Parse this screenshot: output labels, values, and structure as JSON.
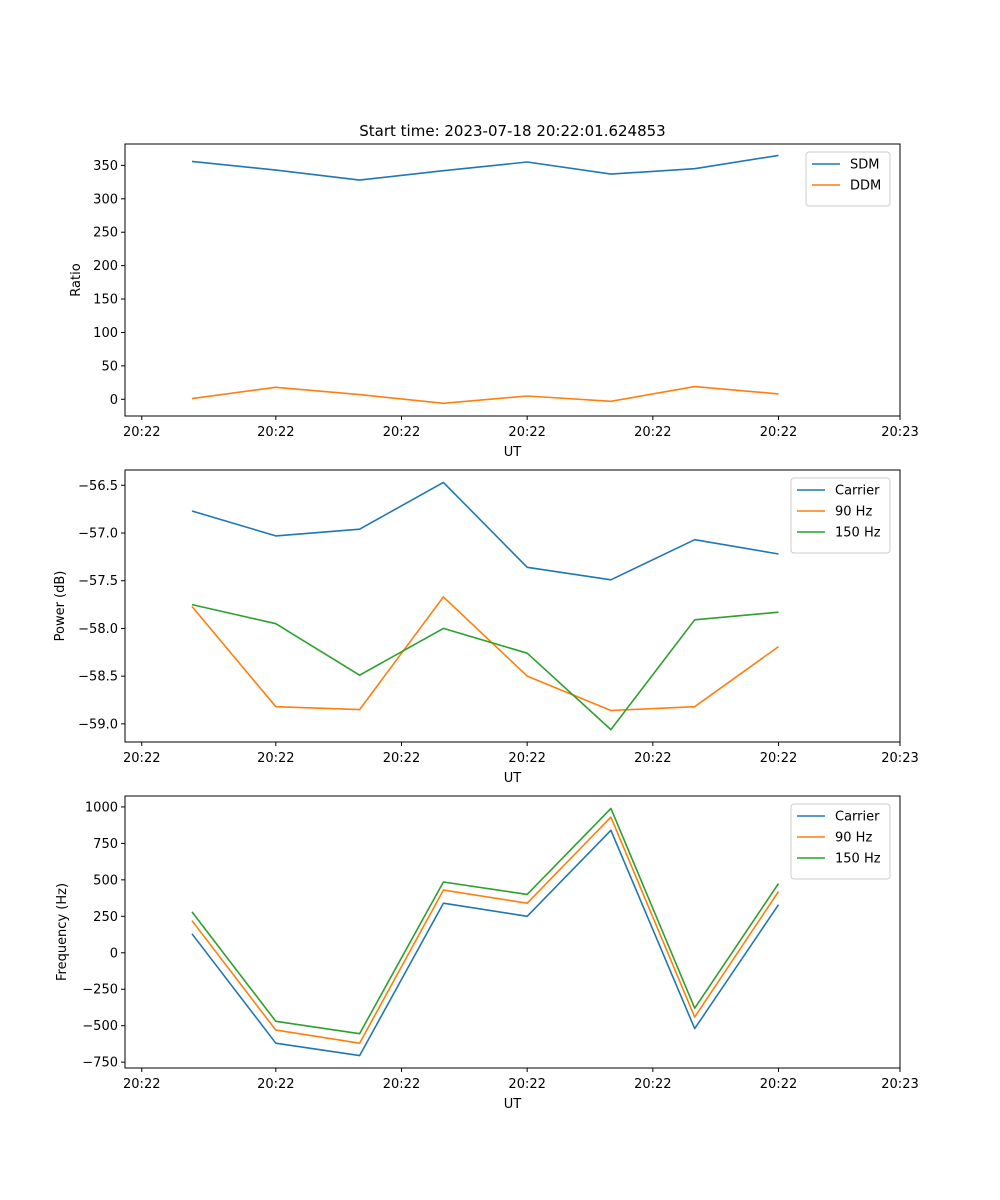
{
  "figure_title": "Start time: 2023-07-18 20:22:01.624853",
  "colors": {
    "blue": "#1f77b4",
    "orange": "#ff7f0e",
    "green": "#2ca02c"
  },
  "chart_data": [
    {
      "type": "line",
      "title": "Start time: 2023-07-18 20:22:01.624853",
      "xlabel": "UT",
      "ylabel": "Ratio",
      "x": [
        1,
        2,
        3,
        4,
        5,
        6,
        7,
        8
      ],
      "xlim": [
        0.2,
        9.45
      ],
      "xticks": [
        0.4,
        2.0,
        3.5,
        5.0,
        6.5,
        8.0,
        9.45
      ],
      "xtick_labels": [
        "20:22",
        "20:22",
        "20:22",
        "20:22",
        "20:22",
        "20:22",
        "20:23"
      ],
      "ylim": [
        -25,
        382
      ],
      "yticks": [
        0,
        50,
        100,
        150,
        200,
        250,
        300,
        350
      ],
      "ytick_labels": [
        "0",
        "50",
        "100",
        "150",
        "200",
        "250",
        "300",
        "350"
      ],
      "legend_position": "top-right",
      "grid": false,
      "series": [
        {
          "name": "SDM",
          "color": "#1f77b4",
          "values": [
            356,
            343,
            328,
            342,
            355,
            337,
            345,
            365
          ]
        },
        {
          "name": "DDM",
          "color": "#ff7f0e",
          "values": [
            1,
            18,
            7,
            -6,
            5,
            -3,
            19,
            8
          ]
        }
      ]
    },
    {
      "type": "line",
      "title": "",
      "xlabel": "UT",
      "ylabel": "Power (dB)",
      "x": [
        1,
        2,
        3,
        4,
        5,
        6,
        7,
        8
      ],
      "xlim": [
        0.2,
        9.45
      ],
      "xticks": [
        0.4,
        2.0,
        3.5,
        5.0,
        6.5,
        8.0,
        9.45
      ],
      "xtick_labels": [
        "20:22",
        "20:22",
        "20:22",
        "20:22",
        "20:22",
        "20:22",
        "20:23"
      ],
      "ylim": [
        -59.19,
        -56.34
      ],
      "yticks": [
        -59.0,
        -58.5,
        -58.0,
        -57.5,
        -57.0,
        -56.5
      ],
      "ytick_labels": [
        "−59.0",
        "−58.5",
        "−58.0",
        "−57.5",
        "−57.0",
        "−56.5"
      ],
      "legend_position": "top-right",
      "grid": false,
      "series": [
        {
          "name": "Carrier",
          "color": "#1f77b4",
          "values": [
            -56.77,
            -57.03,
            -56.96,
            -56.47,
            -57.36,
            -57.49,
            -57.07,
            -57.22
          ]
        },
        {
          "name": "90 Hz",
          "color": "#ff7f0e",
          "values": [
            -57.77,
            -58.82,
            -58.85,
            -57.67,
            -58.5,
            -58.86,
            -58.82,
            -58.19
          ]
        },
        {
          "name": "150 Hz",
          "color": "#2ca02c",
          "values": [
            -57.75,
            -57.95,
            -58.49,
            -58.0,
            -58.26,
            -59.06,
            -57.91,
            -57.83
          ]
        }
      ]
    },
    {
      "type": "line",
      "title": "",
      "xlabel": "UT",
      "ylabel": "Frequency (Hz)",
      "x": [
        1,
        2,
        3,
        4,
        5,
        6,
        7,
        8
      ],
      "xlim": [
        0.2,
        9.45
      ],
      "xticks": [
        0.4,
        2.0,
        3.5,
        5.0,
        6.5,
        8.0,
        9.45
      ],
      "xtick_labels": [
        "20:22",
        "20:22",
        "20:22",
        "20:22",
        "20:22",
        "20:22",
        "20:23"
      ],
      "ylim": [
        -790,
        1075
      ],
      "yticks": [
        -750,
        -500,
        -250,
        0,
        250,
        500,
        750,
        1000
      ],
      "ytick_labels": [
        "−750",
        "−500",
        "−250",
        "0",
        "250",
        "500",
        "750",
        "1000"
      ],
      "legend_position": "top-right",
      "grid": false,
      "series": [
        {
          "name": "Carrier",
          "color": "#1f77b4",
          "values": [
            130,
            -620,
            -705,
            340,
            250,
            840,
            -520,
            330
          ]
        },
        {
          "name": "90 Hz",
          "color": "#ff7f0e",
          "values": [
            220,
            -530,
            -620,
            430,
            340,
            930,
            -440,
            420
          ]
        },
        {
          "name": "150 Hz",
          "color": "#2ca02c",
          "values": [
            280,
            -470,
            -555,
            485,
            400,
            990,
            -380,
            475
          ]
        }
      ]
    }
  ]
}
